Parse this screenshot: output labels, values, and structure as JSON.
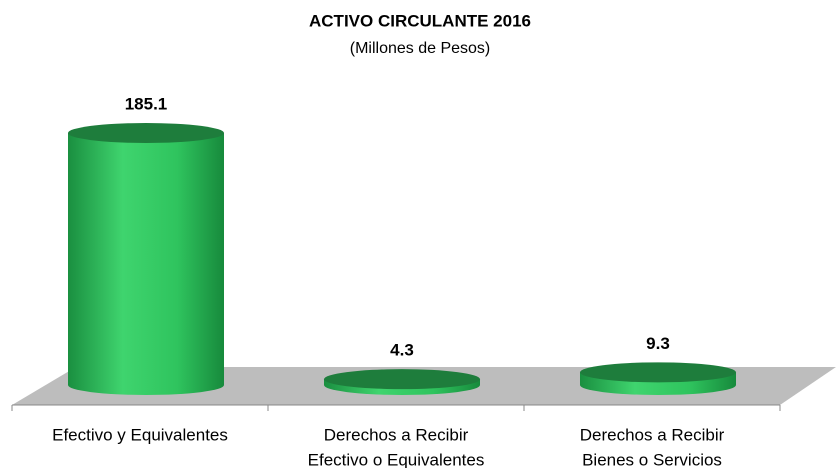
{
  "chart_data": {
    "type": "bar3d",
    "title": "ACTIVO CIRCULANTE 2016",
    "subtitle": "(Millones de Pesos)",
    "categories": [
      [
        "Efectivo y Equivalentes"
      ],
      [
        "Derechos a Recibir",
        "Efectivo o Equivalentes"
      ],
      [
        "Derechos a Recibir",
        "Bienes o Servicios"
      ]
    ],
    "values": [
      185.1,
      4.3,
      9.3
    ],
    "color": "#2fc45e"
  }
}
